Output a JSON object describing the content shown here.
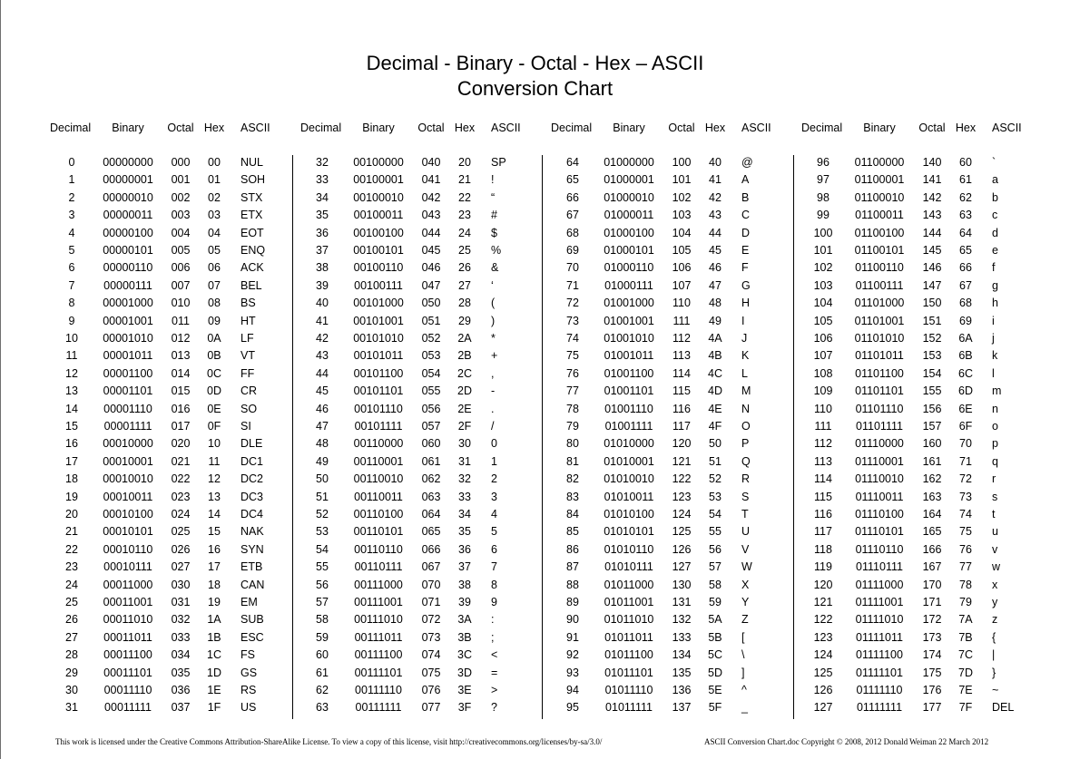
{
  "title_line1": "Decimal - Binary - Octal - Hex – ASCII",
  "title_line2": "Conversion Chart",
  "headers": [
    "Decimal",
    "Binary",
    "Octal",
    "Hex",
    "ASCII"
  ],
  "ascii": [
    "NUL",
    "SOH",
    "STX",
    "ETX",
    "EOT",
    "ENQ",
    "ACK",
    "BEL",
    "BS",
    "HT",
    "LF",
    "VT",
    "FF",
    "CR",
    "SO",
    "SI",
    "DLE",
    "DC1",
    "DC2",
    "DC3",
    "DC4",
    "NAK",
    "SYN",
    "ETB",
    "CAN",
    "EM",
    "SUB",
    "ESC",
    "FS",
    "GS",
    "RS",
    "US",
    "SP",
    "!",
    "“",
    "#",
    "$",
    "%",
    "&",
    "‘",
    "(",
    ")",
    "*",
    "+",
    ",",
    "-",
    ".",
    "/",
    "0",
    "1",
    "2",
    "3",
    "4",
    "5",
    "6",
    "7",
    "8",
    "9",
    ":",
    ";",
    "<",
    "=",
    ">",
    "?",
    "@",
    "A",
    "B",
    "C",
    "D",
    "E",
    "F",
    "G",
    "H",
    "I",
    "J",
    "K",
    "L",
    "M",
    "N",
    "O",
    "P",
    "Q",
    "R",
    "S",
    "T",
    "U",
    "V",
    "W",
    "X",
    "Y",
    "Z",
    "[",
    "\\",
    "]",
    "^",
    "_",
    "`",
    "a",
    "b",
    "c",
    "d",
    "e",
    "f",
    "g",
    "h",
    "i",
    "j",
    "k",
    "l",
    "m",
    "n",
    "o",
    "p",
    "q",
    "r",
    "s",
    "t",
    "u",
    "v",
    "w",
    "x",
    "y",
    "z",
    "{",
    "|",
    "}",
    "~",
    "DEL"
  ],
  "footer": {
    "license": "This work is licensed under the Creative Commons Attribution-ShareAlike License.  To view a copy of this license, visit  http://creativecommons.org/licenses/by-sa/3.0/",
    "doc": "ASCII Conversion Chart.doc     Copyright © 2008, 2012     Donald Weiman   22 March 2012"
  }
}
